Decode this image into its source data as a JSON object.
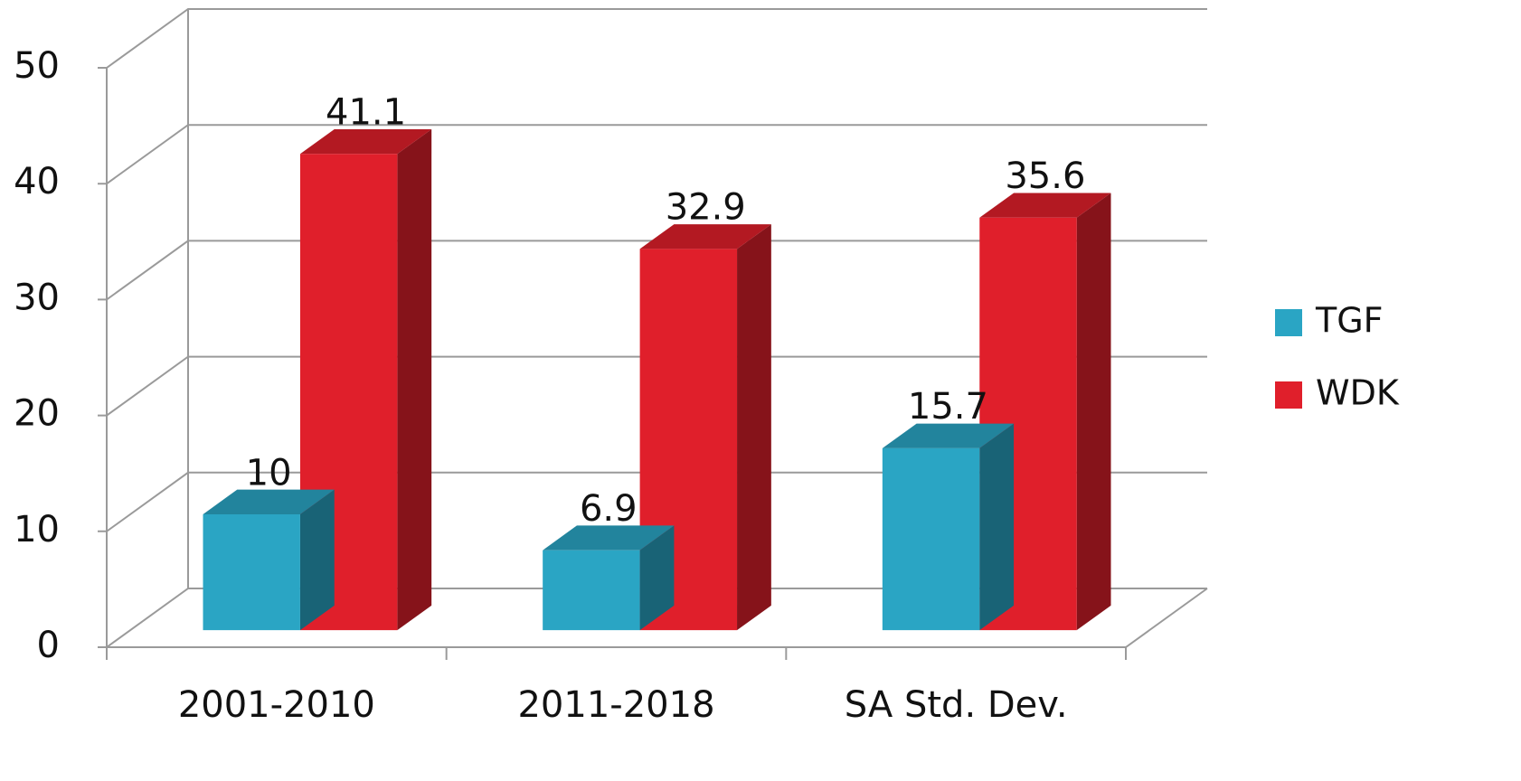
{
  "chart_data": {
    "type": "bar3d",
    "categories": [
      "2001-2010",
      "2011-2018",
      "SA Std. Dev."
    ],
    "series": [
      {
        "name": "TGF",
        "color": "#2aa5c4",
        "values": [
          10,
          6.9,
          15.7
        ]
      },
      {
        "name": "WDK",
        "color": "#e01f2b",
        "values": [
          41.1,
          32.9,
          35.6
        ]
      }
    ],
    "ylim": [
      0,
      50
    ],
    "yticks": [
      0,
      10,
      20,
      30,
      40,
      50
    ],
    "grid": true,
    "legend": "right"
  }
}
